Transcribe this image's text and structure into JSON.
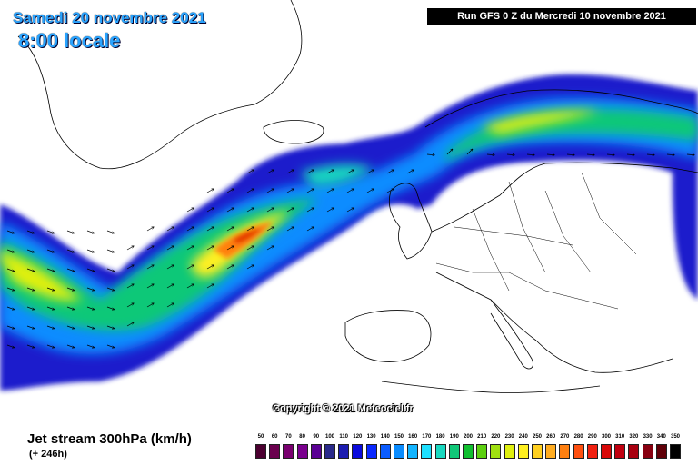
{
  "header": {
    "valid_date": "Samedi 20 novembre 2021",
    "valid_time": "8:00 locale"
  },
  "run_info": "Run GFS 0 Z du Mercredi 10 novembre 2021",
  "copyright": "Copyright © 2021 Meteociel.fr",
  "product": {
    "label": "Jet stream 300hPa (km/h)",
    "lead_time": "(+ 246h)"
  },
  "map": {
    "ocean_color": "#ffffff",
    "jet_core_color": "#e02000"
  },
  "legend": {
    "unit": "km/h",
    "values": [
      "50",
      "60",
      "70",
      "80",
      "90",
      "100",
      "110",
      "120",
      "130",
      "140",
      "150",
      "160",
      "170",
      "180",
      "190",
      "200",
      "210",
      "220",
      "230",
      "240",
      "250",
      "260",
      "270",
      "280",
      "290",
      "300",
      "310",
      "320",
      "330",
      "340",
      "350"
    ],
    "colors": [
      "#4b0030",
      "#6a004e",
      "#7a0070",
      "#7a008e",
      "#5a0094",
      "#2a2a8a",
      "#1c1cb0",
      "#0a0adc",
      "#0a28ff",
      "#0a5cff",
      "#0a8cff",
      "#12b4ff",
      "#1ee0ff",
      "#18d8c0",
      "#10c878",
      "#10c030",
      "#5cd010",
      "#a0e010",
      "#e0f010",
      "#fff020",
      "#ffd020",
      "#ffac20",
      "#ff8010",
      "#ff5010",
      "#f02010",
      "#d80808",
      "#c00010",
      "#a80010",
      "#880010",
      "#600008",
      "#000000"
    ]
  }
}
